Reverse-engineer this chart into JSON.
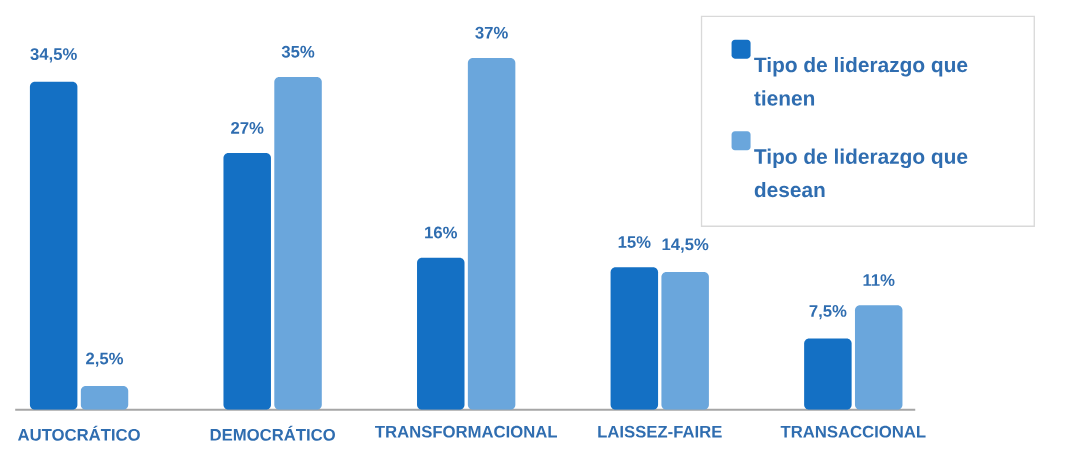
{
  "chart_data": {
    "type": "bar",
    "categories": [
      "AUTOCRÁTICO",
      "DEMOCRÁTICO",
      "TRANSFORMACIONAL",
      "LAISSEZ-FAIRE",
      "TRANSACCIONAL"
    ],
    "series": [
      {
        "name": "Tipo de liderazgo que tienen",
        "color": "#1470c4",
        "values": [
          34.5,
          27,
          16,
          15,
          7.5
        ],
        "value_labels": [
          "34,5%",
          "27%",
          "16%",
          "15%",
          "7,5%"
        ]
      },
      {
        "name": "Tipo de liderazgo que desean",
        "color": "#6aa6dc",
        "values": [
          2.5,
          35,
          37,
          14.5,
          11
        ],
        "value_labels": [
          "2,5%",
          "35%",
          "37%",
          "14,5%",
          "11%"
        ]
      }
    ],
    "legend": "top right"
  }
}
